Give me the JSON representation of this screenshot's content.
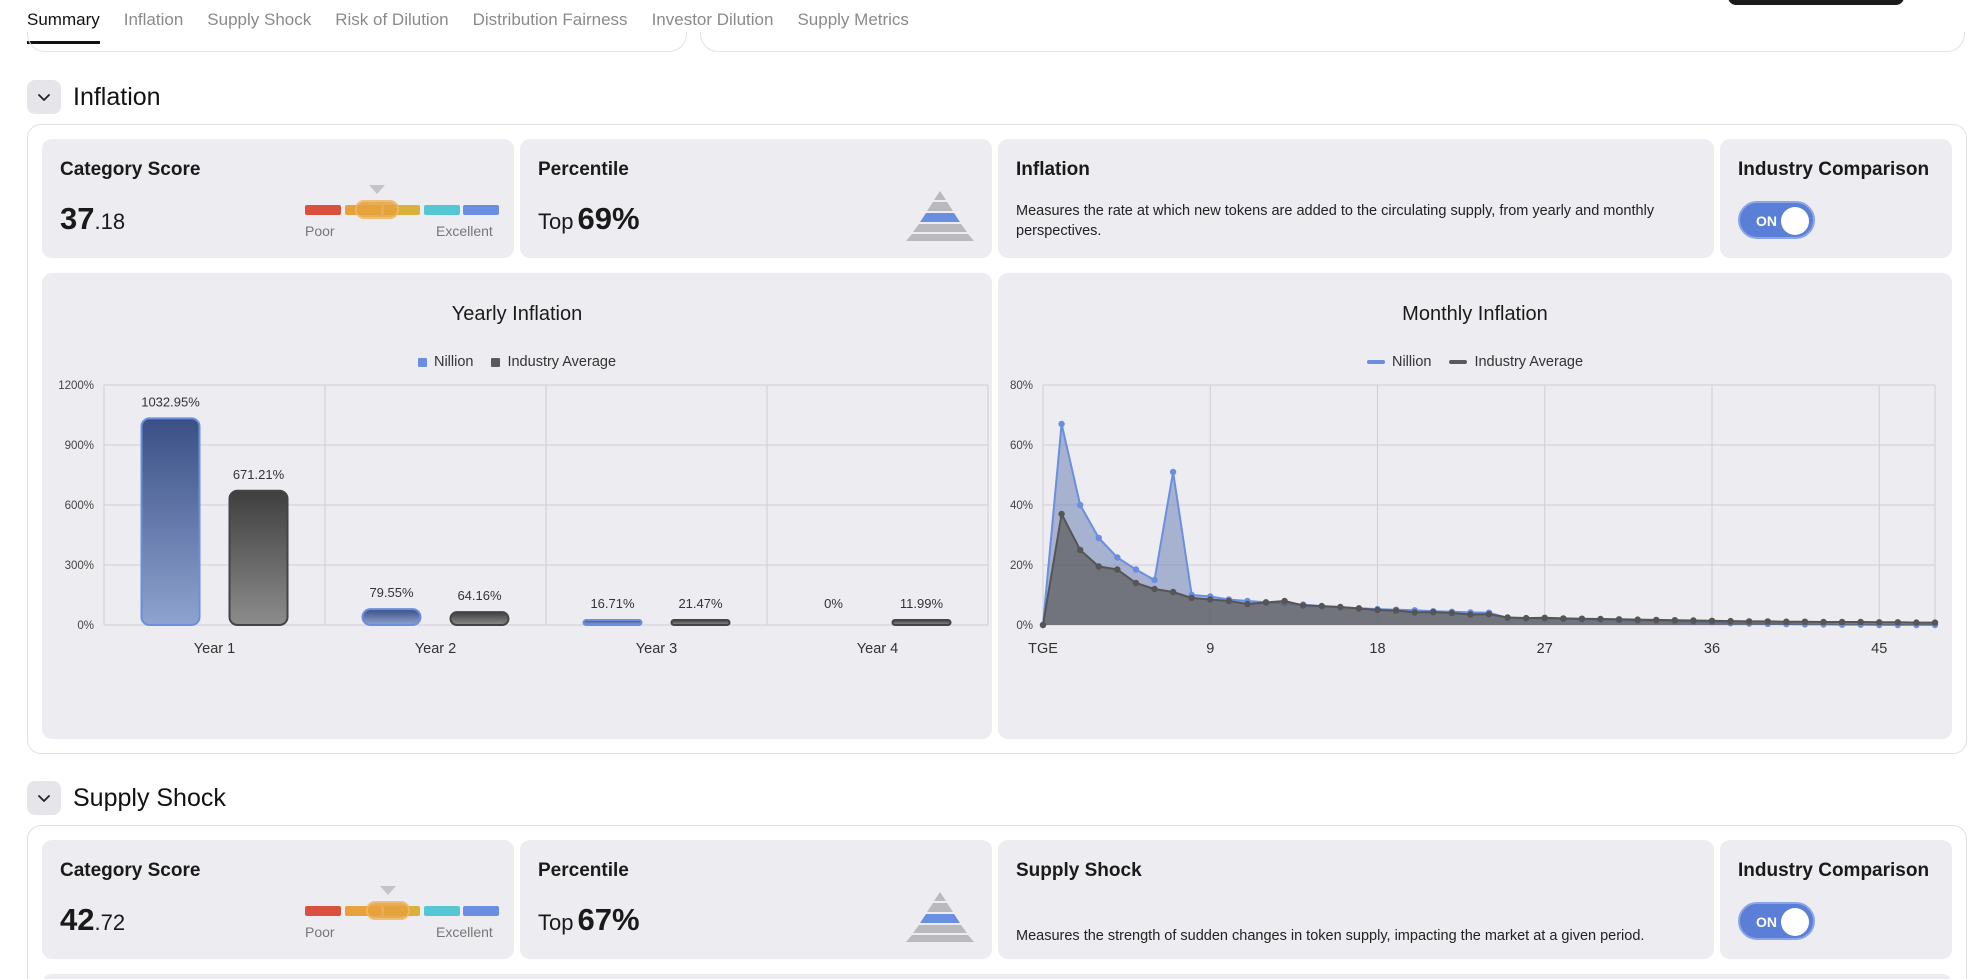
{
  "tabs": [
    {
      "label": "Summary",
      "active": true
    },
    {
      "label": "Inflation",
      "active": false
    },
    {
      "label": "Supply Shock",
      "active": false
    },
    {
      "label": "Risk of Dilution",
      "active": false
    },
    {
      "label": "Distribution Fairness",
      "active": false
    },
    {
      "label": "Investor Dilution",
      "active": false
    },
    {
      "label": "Supply Metrics",
      "active": false
    }
  ],
  "colors": {
    "accent": "#5b7fd6",
    "nillion": "#6a8ed8",
    "industry": "#5a5a5a",
    "scale": [
      "#d9503f",
      "#e7a23c",
      "#d9b13a",
      "#54c7d3",
      "#6a8ee0"
    ]
  },
  "sections": {
    "inflation": {
      "title": "Inflation",
      "score_card": {
        "title": "Category Score",
        "score_int": "37",
        "score_frac": ".18",
        "poor_label": "Poor",
        "excellent_label": "Excellent",
        "level": 0.3718
      },
      "percentile_card": {
        "title": "Percentile",
        "prefix": "Top",
        "value": "69%"
      },
      "info_card": {
        "title": "Inflation",
        "description": "Measures the rate at which new tokens are added to the circulating supply, from yearly and monthly perspectives."
      },
      "comparison_card": {
        "title": "Industry Comparison",
        "toggle_label": "ON"
      }
    },
    "supply_shock": {
      "title": "Supply Shock",
      "score_card": {
        "title": "Category Score",
        "score_int": "42",
        "score_frac": ".72",
        "poor_label": "Poor",
        "excellent_label": "Excellent",
        "level": 0.4272
      },
      "percentile_card": {
        "title": "Percentile",
        "prefix": "Top",
        "value": "67%"
      },
      "info_card": {
        "title": "Supply Shock",
        "description": "Measures the strength of sudden changes in token supply, impacting the market at a given period."
      },
      "comparison_card": {
        "title": "Industry Comparison",
        "toggle_label": "ON"
      }
    }
  },
  "chart_data": [
    {
      "type": "bar",
      "title": "Yearly Inflation",
      "categories": [
        "Year 1",
        "Year 2",
        "Year 3",
        "Year 4"
      ],
      "series": [
        {
          "name": "Nillion",
          "values": [
            1032.95,
            79.55,
            16.71,
            0
          ],
          "labels": [
            "1032.95%",
            "79.55%",
            "16.71%",
            "0%"
          ]
        },
        {
          "name": "Industry Average",
          "values": [
            671.21,
            64.16,
            21.47,
            11.99
          ],
          "labels": [
            "671.21%",
            "64.16%",
            "21.47%",
            "11.99%"
          ]
        }
      ],
      "ylim": [
        0,
        1200
      ],
      "yticks": [
        "0%",
        "300%",
        "600%",
        "900%",
        "1200%"
      ],
      "legend": "top-center",
      "grid": true
    },
    {
      "type": "area",
      "title": "Monthly Inflation",
      "xtick_labels": [
        "TGE",
        "9",
        "18",
        "27",
        "36",
        "45"
      ],
      "xtick_positions": [
        0,
        9,
        18,
        27,
        36,
        45
      ],
      "xlim": [
        0,
        48
      ],
      "ylim": [
        0,
        80
      ],
      "yticks": [
        "0%",
        "20%",
        "40%",
        "60%",
        "80%"
      ],
      "series": [
        {
          "name": "Nillion",
          "x": [
            0,
            1,
            2,
            3,
            4,
            5,
            6,
            7,
            8,
            9,
            10,
            11,
            12,
            13,
            14,
            15,
            16,
            17,
            18,
            19,
            20,
            21,
            22,
            23,
            24,
            25,
            26,
            27,
            28,
            29,
            30,
            31,
            32,
            33,
            34,
            35,
            36,
            37,
            38,
            39,
            40,
            41,
            42,
            43,
            44,
            45,
            46,
            47,
            48
          ],
          "values": [
            0,
            67,
            40,
            29,
            22.5,
            18.5,
            15,
            51,
            10,
            9.5,
            8.5,
            8,
            7.6,
            7.2,
            6.8,
            6.3,
            5.9,
            5.6,
            5.3,
            5.1,
            4.9,
            4.6,
            4.4,
            4.2,
            4.1,
            2.4,
            2.2,
            2.1,
            2,
            1.9,
            1.8,
            1.6,
            1.4,
            1.3,
            1.2,
            1.1,
            1,
            0.6,
            0.5,
            0.4,
            0.3,
            0.2,
            0.2,
            0.1,
            0.1,
            0,
            0,
            0,
            0
          ]
        },
        {
          "name": "Industry Average",
          "x": [
            0,
            1,
            2,
            3,
            4,
            5,
            6,
            7,
            8,
            9,
            10,
            11,
            12,
            13,
            14,
            15,
            16,
            17,
            18,
            19,
            20,
            21,
            22,
            23,
            24,
            25,
            26,
            27,
            28,
            29,
            30,
            31,
            32,
            33,
            34,
            35,
            36,
            37,
            38,
            39,
            40,
            41,
            42,
            43,
            44,
            45,
            46,
            47,
            48
          ],
          "values": [
            0,
            37,
            25,
            19.5,
            18.5,
            14,
            12,
            11,
            9,
            8.5,
            8,
            7,
            7.5,
            8,
            6.5,
            6.3,
            6,
            5.5,
            5,
            4.8,
            4.2,
            4.3,
            4,
            3.5,
            3.6,
            2.5,
            2.3,
            2.4,
            2.2,
            2.1,
            2,
            1.9,
            1.8,
            1.7,
            1.6,
            1.5,
            1.4,
            1.3,
            1.2,
            1.2,
            1.1,
            1.1,
            1,
            1,
            1,
            0.9,
            0.9,
            0.8,
            0.8
          ]
        }
      ],
      "legend": "top-center",
      "grid": true
    }
  ]
}
